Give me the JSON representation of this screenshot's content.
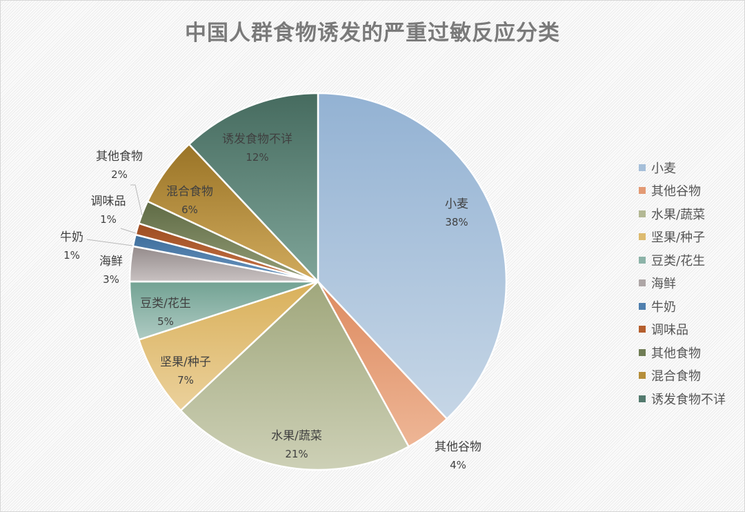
{
  "title": "中国人群食物诱发的严重过敏反应分类",
  "chart_data": {
    "type": "pie",
    "title": "中国人群食物诱发的严重过敏反应分类",
    "categories": [
      "小麦",
      "其他谷物",
      "水果/蔬菜",
      "坚果/种子",
      "豆类/花生",
      "海鲜",
      "牛奶",
      "调味品",
      "其他食物",
      "混合食物",
      "诱发食物不详"
    ],
    "values": [
      38,
      4,
      21,
      7,
      5,
      3,
      1,
      1,
      2,
      6,
      12
    ],
    "labels": [
      "38%",
      "4%",
      "21%",
      "7%",
      "5%",
      "3%",
      "1%",
      "1%",
      "2%",
      "6%",
      "12%"
    ],
    "colors": [
      "#a6bfd9",
      "#e39a74",
      "#b3b894",
      "#ddbb70",
      "#8cb3a8",
      "#aea6a6",
      "#4f7fae",
      "#b55f2e",
      "#707d55",
      "#b58e3a",
      "#537a6e"
    ],
    "legend_position": "right",
    "start_angle_deg": 0,
    "direction": "clockwise"
  },
  "slice_labels": [
    {
      "name": "小麦",
      "pct": "38%"
    },
    {
      "name": "其他谷物",
      "pct": "4%"
    },
    {
      "name": "水果/蔬菜",
      "pct": "21%"
    },
    {
      "name": "坚果/种子",
      "pct": "7%"
    },
    {
      "name": "豆类/花生",
      "pct": "5%"
    },
    {
      "name": "海鲜",
      "pct": "3%"
    },
    {
      "name": "牛奶",
      "pct": "1%"
    },
    {
      "name": "调味品",
      "pct": "1%"
    },
    {
      "name": "其他食物",
      "pct": "2%"
    },
    {
      "name": "混合食物",
      "pct": "6%"
    },
    {
      "name": "诱发食物不详",
      "pct": "12%"
    }
  ],
  "legend": [
    {
      "label": "小麦",
      "color": "#a6bfd9"
    },
    {
      "label": "其他谷物",
      "color": "#e39a74"
    },
    {
      "label": "水果/蔬菜",
      "color": "#b3b894"
    },
    {
      "label": "坚果/种子",
      "color": "#ddbb70"
    },
    {
      "label": "豆类/花生",
      "color": "#8cb3a8"
    },
    {
      "label": "海鲜",
      "color": "#aea6a6"
    },
    {
      "label": "牛奶",
      "color": "#4f7fae"
    },
    {
      "label": "调味品",
      "color": "#b55f2e"
    },
    {
      "label": "其他食物",
      "color": "#707d55"
    },
    {
      "label": "混合食物",
      "color": "#b58e3a"
    },
    {
      "label": "诱发食物不详",
      "color": "#537a6e"
    }
  ]
}
